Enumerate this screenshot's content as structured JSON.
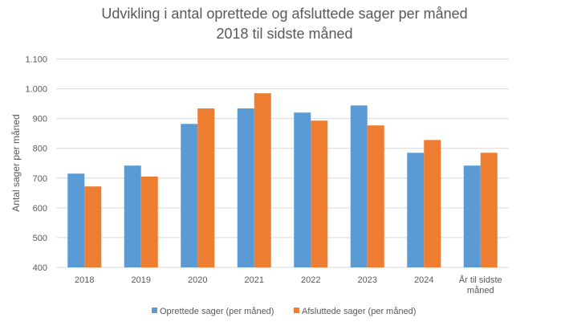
{
  "chart_data": {
    "type": "bar",
    "title": "Udvikling i antal oprettede og afsluttede sager per måned",
    "subtitle": "2018 til sidste måned",
    "xlabel": "",
    "ylabel": "Antal sager per måned",
    "ylim": [
      400,
      1100
    ],
    "yticks": [
      400,
      500,
      600,
      700,
      800,
      900,
      1000,
      1100
    ],
    "ytick_labels": [
      "400",
      "500",
      "600",
      "700",
      "800",
      "900",
      "1.000",
      "1.100"
    ],
    "grid": true,
    "legend_position": "bottom",
    "categories": [
      "2018",
      "2019",
      "2020",
      "2021",
      "2022",
      "2023",
      "2024",
      "År til sidste måned"
    ],
    "category_label_lines": [
      [
        "2018"
      ],
      [
        "2019"
      ],
      [
        "2020"
      ],
      [
        "2021"
      ],
      [
        "2022"
      ],
      [
        "2023"
      ],
      [
        "2024"
      ],
      [
        "År til sidste",
        "måned"
      ]
    ],
    "series": [
      {
        "name": "Oprettede sager (per måned)",
        "color": "#5B9BD5",
        "values": [
          715,
          742,
          882,
          934,
          920,
          944,
          785,
          742
        ]
      },
      {
        "name": "Afsluttede sager (per måned)",
        "color": "#ED7D31",
        "values": [
          672,
          705,
          934,
          985,
          893,
          877,
          828,
          785
        ]
      }
    ]
  }
}
